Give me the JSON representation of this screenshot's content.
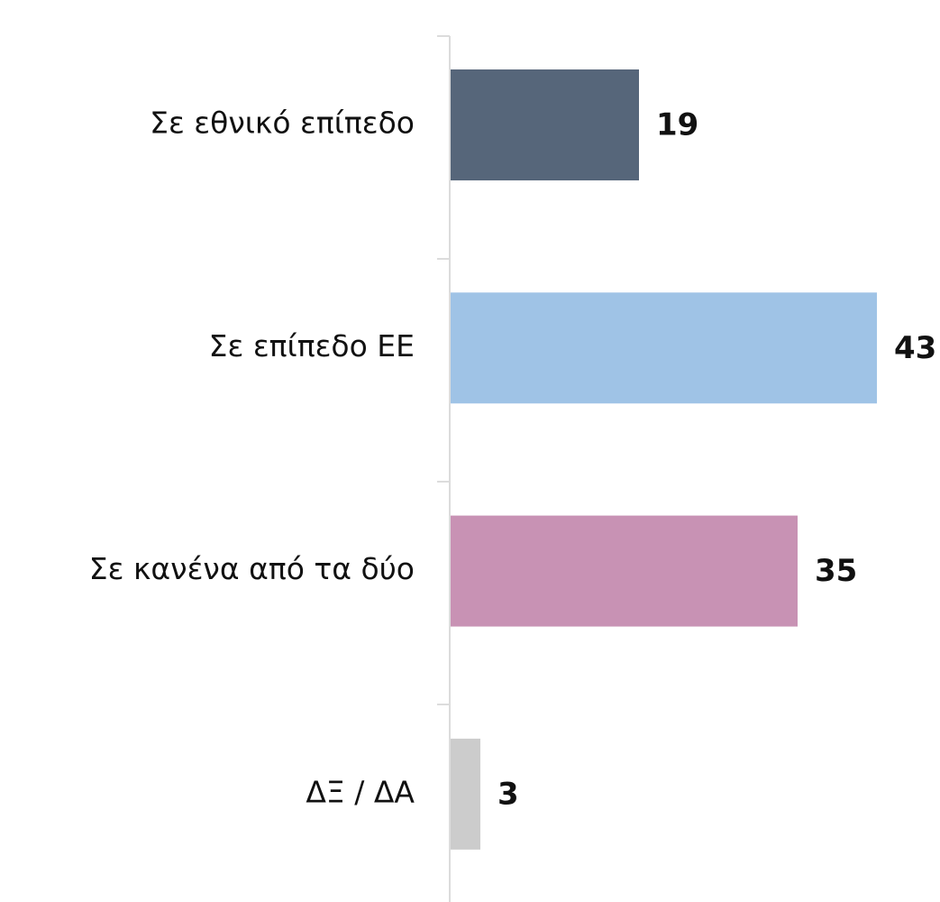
{
  "chart_data": {
    "type": "hbar",
    "categories": [
      "Σε εθνικό επίπεδο",
      "Σε επίπεδο ΕΕ",
      "Σε κανένα από τα δύο",
      "ΔΞ / ΔΑ"
    ],
    "values": [
      19,
      43,
      35,
      3
    ],
    "colors": [
      "#56667a",
      "#9fc3e6",
      "#c892b4",
      "#cccccc"
    ]
  }
}
